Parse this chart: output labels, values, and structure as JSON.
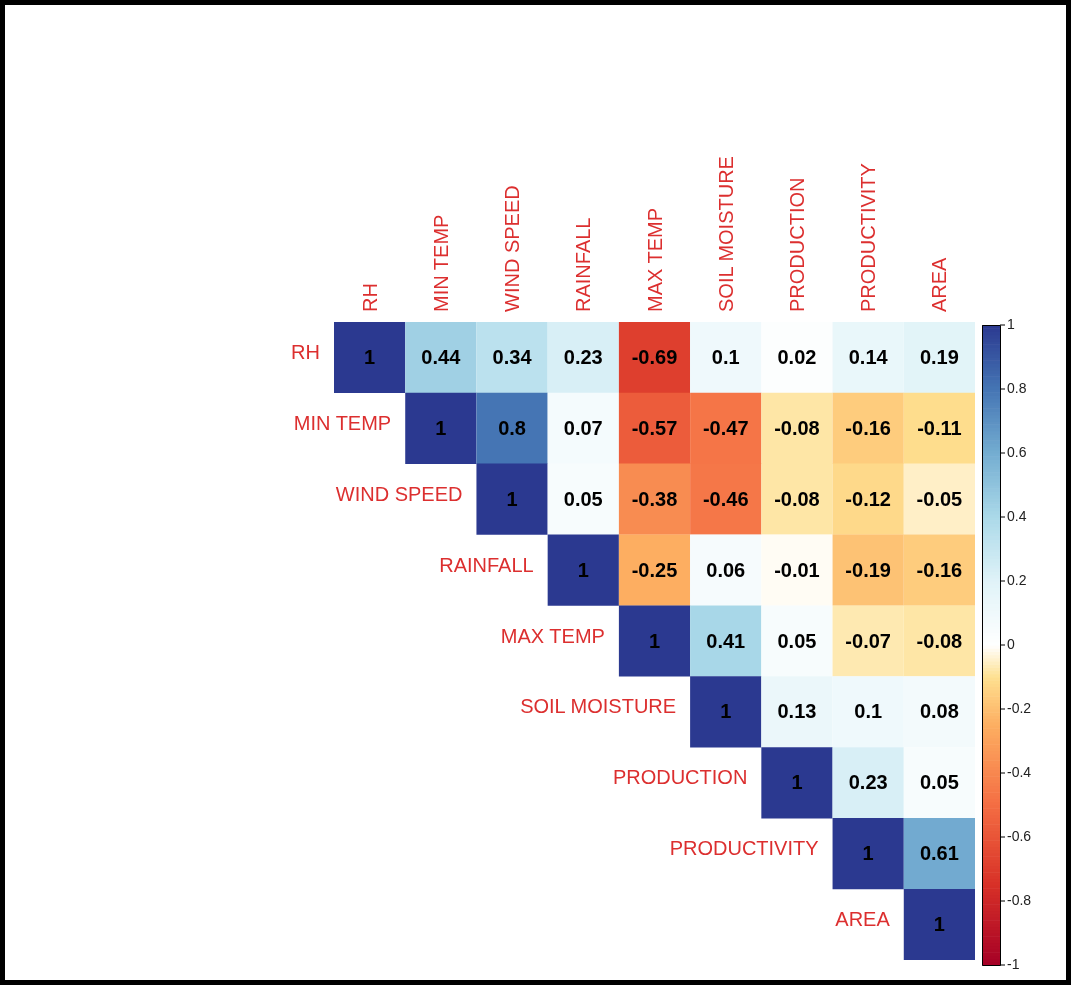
{
  "chart_data": {
    "type": "heatmap",
    "categories": [
      "RH",
      "MIN TEMP",
      "WIND SPEED",
      "RAINFALL",
      "MAX TEMP",
      "SOIL MOISTURE",
      "PRODUCTION",
      "PRODUCTIVITY",
      "AREA"
    ],
    "y_categories": [
      "RH",
      "MIN TEMP",
      "WIND SPEED",
      "RAINFALL",
      "MAX TEMP",
      "SOIL MOISTURE",
      "PRODUCTION",
      "PRODUCTIVITY",
      "AREA"
    ],
    "cells": [
      [
        1,
        0.44,
        0.34,
        0.23,
        -0.69,
        0.1,
        0.02,
        0.14,
        0.19
      ],
      [
        null,
        1,
        0.8,
        0.07,
        -0.57,
        -0.47,
        -0.08,
        -0.16,
        -0.11
      ],
      [
        null,
        null,
        1,
        0.05,
        -0.38,
        -0.46,
        -0.08,
        -0.12,
        -0.05
      ],
      [
        null,
        null,
        null,
        1,
        -0.25,
        0.06,
        -0.01,
        -0.19,
        -0.16
      ],
      [
        null,
        null,
        null,
        null,
        1,
        0.41,
        0.05,
        -0.07,
        -0.08
      ],
      [
        null,
        null,
        null,
        null,
        null,
        1,
        0.13,
        0.1,
        0.08
      ],
      [
        null,
        null,
        null,
        null,
        null,
        null,
        1,
        0.23,
        0.05
      ],
      [
        null,
        null,
        null,
        null,
        null,
        null,
        null,
        1,
        0.61
      ],
      [
        null,
        null,
        null,
        null,
        null,
        null,
        null,
        null,
        1
      ]
    ],
    "clim": [
      -1,
      1
    ],
    "cticks": [
      -1,
      -0.8,
      -0.6,
      -0.4,
      -0.2,
      0,
      0.2,
      0.4,
      0.6,
      0.8,
      1
    ],
    "data_labels": true
  }
}
